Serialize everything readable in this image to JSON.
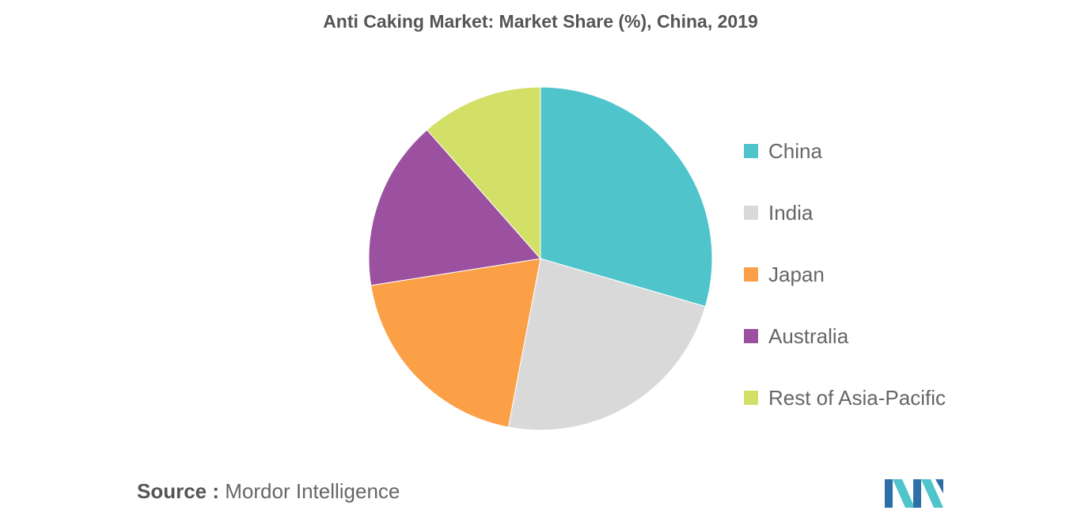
{
  "header": {
    "title": "Anti Caking Market: Market Share (%), China, 2019"
  },
  "chart_data": {
    "type": "pie",
    "title": "Anti Caking Market: Market Share (%), China, 2019",
    "categories": [
      "China",
      "India",
      "Japan",
      "Australia",
      "Rest of Asia-Pacific"
    ],
    "values": [
      29.5,
      23.5,
      19.5,
      16.0,
      11.5
    ],
    "colors": [
      "#4fc4cb",
      "#d9d9d9",
      "#fba047",
      "#9b519f",
      "#d2e068"
    ],
    "start": "12 o'clock",
    "direction": "clockwise",
    "legend_position": "right"
  },
  "footer": {
    "source_prefix": "Source :",
    "source_name": "Mordor Intelligence"
  },
  "logo": {
    "icon": "mordor-intelligence-logo-icon",
    "colors": [
      "#2e6fa8",
      "#4fc4cb"
    ]
  }
}
